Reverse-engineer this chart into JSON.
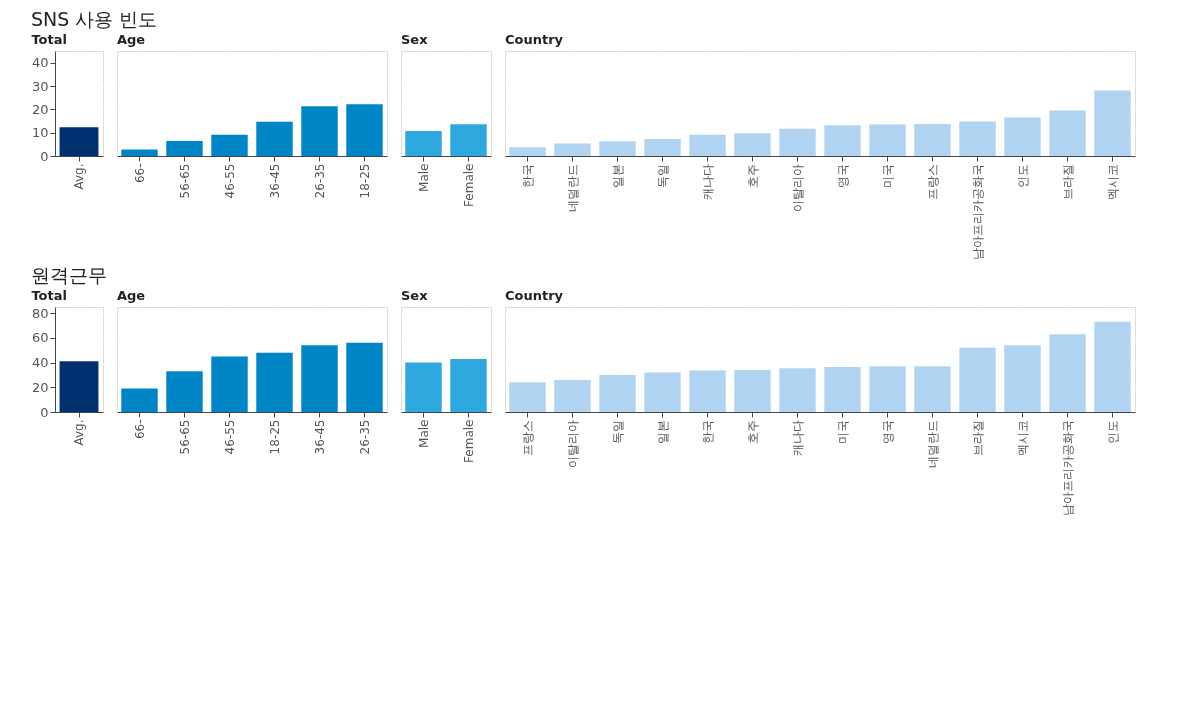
{
  "chart_data": [
    {
      "type": "bar",
      "title": "Total",
      "annotations": [
        "SNS 사용 빈도"
      ],
      "categories": [
        "Avg."
      ],
      "values": [
        12.3
      ],
      "color": "#003070",
      "ylim": [
        0,
        45
      ],
      "yticks": [
        0,
        10,
        20,
        30,
        40
      ],
      "grid": true
    },
    {
      "type": "bar",
      "title": "Age",
      "categories": [
        "66-",
        "56-65",
        "46-55",
        "36-45",
        "26-35",
        "18-25"
      ],
      "values": [
        2.8,
        6.4,
        9.1,
        14.7,
        21.3,
        22.2
      ],
      "color": "#0085c7",
      "ylim": [
        0,
        45
      ],
      "yticks": [
        0,
        10,
        20,
        30,
        40
      ],
      "grid": true,
      "tick_labels": "x"
    },
    {
      "type": "bar",
      "title": "Sex",
      "categories": [
        "Male",
        "Female"
      ],
      "values": [
        10.7,
        13.6
      ],
      "color": "#2ea8df",
      "ylim": [
        0,
        45
      ],
      "yticks": [
        0,
        10,
        20,
        30,
        40
      ],
      "grid": true,
      "tick_labels": "x"
    },
    {
      "type": "bar",
      "title": "Country",
      "categories": [
        "한국",
        "네덜란드",
        "일본",
        "독일",
        "캐나다",
        "호주",
        "이탈리아",
        "영국",
        "미국",
        "프랑스",
        "남아프리카공화국",
        "인도",
        "브라질",
        "멕시코"
      ],
      "values": [
        3.7,
        5.4,
        6.3,
        7.3,
        9.1,
        9.8,
        11.7,
        13.2,
        13.5,
        13.7,
        14.8,
        16.5,
        19.5,
        28.1
      ],
      "color": "#b0d3f2",
      "ylim": [
        0,
        45
      ],
      "yticks": [
        0,
        10,
        20,
        30,
        40
      ],
      "grid": true,
      "tick_labels": "x"
    },
    {
      "type": "bar",
      "title": "Total",
      "annotations": [
        "원격근무"
      ],
      "categories": [
        "Avg."
      ],
      "values": [
        41
      ],
      "color": "#003070",
      "ylim": [
        0,
        85
      ],
      "yticks": [
        0,
        20,
        40,
        60,
        80
      ],
      "grid": true
    },
    {
      "type": "bar",
      "title": "Age",
      "categories": [
        "66-",
        "56-65",
        "46-55",
        "18-25",
        "36-45",
        "26-35"
      ],
      "values": [
        19,
        33,
        45,
        48,
        54,
        56
      ],
      "color": "#0085c7",
      "ylim": [
        0,
        85
      ],
      "yticks": [
        0,
        20,
        40,
        60,
        80
      ],
      "grid": true,
      "tick_labels": "x"
    },
    {
      "type": "bar",
      "title": "Sex",
      "categories": [
        "Male",
        "Female"
      ],
      "values": [
        40,
        43
      ],
      "color": "#2ea8df",
      "ylim": [
        0,
        85
      ],
      "yticks": [
        0,
        20,
        40,
        60,
        80
      ],
      "grid": true,
      "tick_labels": "x"
    },
    {
      "type": "bar",
      "title": "Country",
      "categories": [
        "프랑스",
        "이탈리아",
        "독일",
        "일본",
        "한국",
        "호주",
        "캐나다",
        "미국",
        "영국",
        "네덜란드",
        "브라질",
        "멕시코",
        "남아프리카공화국",
        "인도"
      ],
      "values": [
        24,
        26,
        30,
        32,
        33.5,
        34,
        35.5,
        36.5,
        37,
        37,
        52,
        54,
        63,
        73
      ],
      "color": "#b0d3f2",
      "ylim": [
        0,
        85
      ],
      "yticks": [
        0,
        20,
        40,
        60,
        80
      ],
      "grid": true,
      "tick_labels": "x"
    }
  ]
}
